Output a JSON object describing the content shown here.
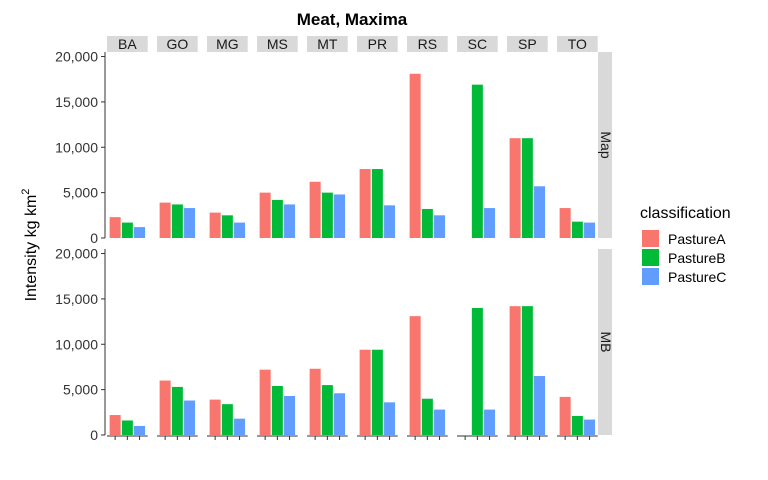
{
  "chart_data": {
    "type": "bar",
    "title": "Meat, Maxima",
    "ylabel": "Intensity kg km",
    "ylabel_superscript": "2",
    "xlabel": "",
    "facet_columns": [
      "BA",
      "GO",
      "MG",
      "MS",
      "MT",
      "PR",
      "RS",
      "SC",
      "SP",
      "TO"
    ],
    "facet_rows": [
      "Map",
      "MB"
    ],
    "y_ticks": [
      0,
      5000,
      10000,
      15000,
      20000
    ],
    "y_tick_labels": [
      "0",
      "5,000",
      "10,000",
      "15,000",
      "20,000"
    ],
    "ylim": [
      0,
      20500
    ],
    "legend": {
      "title": "classification",
      "position": "right",
      "entries": [
        "PastureA",
        "PastureB",
        "PastureC"
      ]
    },
    "colors": {
      "PastureA": "#F8766D",
      "PastureB": "#00BA38",
      "PastureC": "#619CFF",
      "strip_bg": "#d9d9d9",
      "panel_bg": "#ffffff"
    },
    "panels": [
      {
        "row": "Map",
        "series": [
          {
            "name": "PastureA",
            "values": [
              2300,
              3900,
              2800,
              5000,
              6200,
              7600,
              18100,
              0,
              11000,
              3300
            ]
          },
          {
            "name": "PastureB",
            "values": [
              1700,
              3700,
              2500,
              4200,
              5000,
              7600,
              3200,
              16900,
              11000,
              1800
            ]
          },
          {
            "name": "PastureC",
            "values": [
              1200,
              3300,
              1700,
              3700,
              4800,
              3600,
              2500,
              3300,
              5700,
              1700
            ]
          }
        ]
      },
      {
        "row": "MB",
        "series": [
          {
            "name": "PastureA",
            "values": [
              2200,
              6000,
              3900,
              7200,
              7300,
              9400,
              13100,
              0,
              14200,
              4200
            ]
          },
          {
            "name": "PastureB",
            "values": [
              1600,
              5300,
              3400,
              5400,
              5500,
              9400,
              4000,
              14000,
              14200,
              2100
            ]
          },
          {
            "name": "PastureC",
            "values": [
              1000,
              3800,
              1800,
              4300,
              4600,
              3600,
              2800,
              2800,
              6500,
              1700
            ]
          }
        ]
      }
    ]
  }
}
